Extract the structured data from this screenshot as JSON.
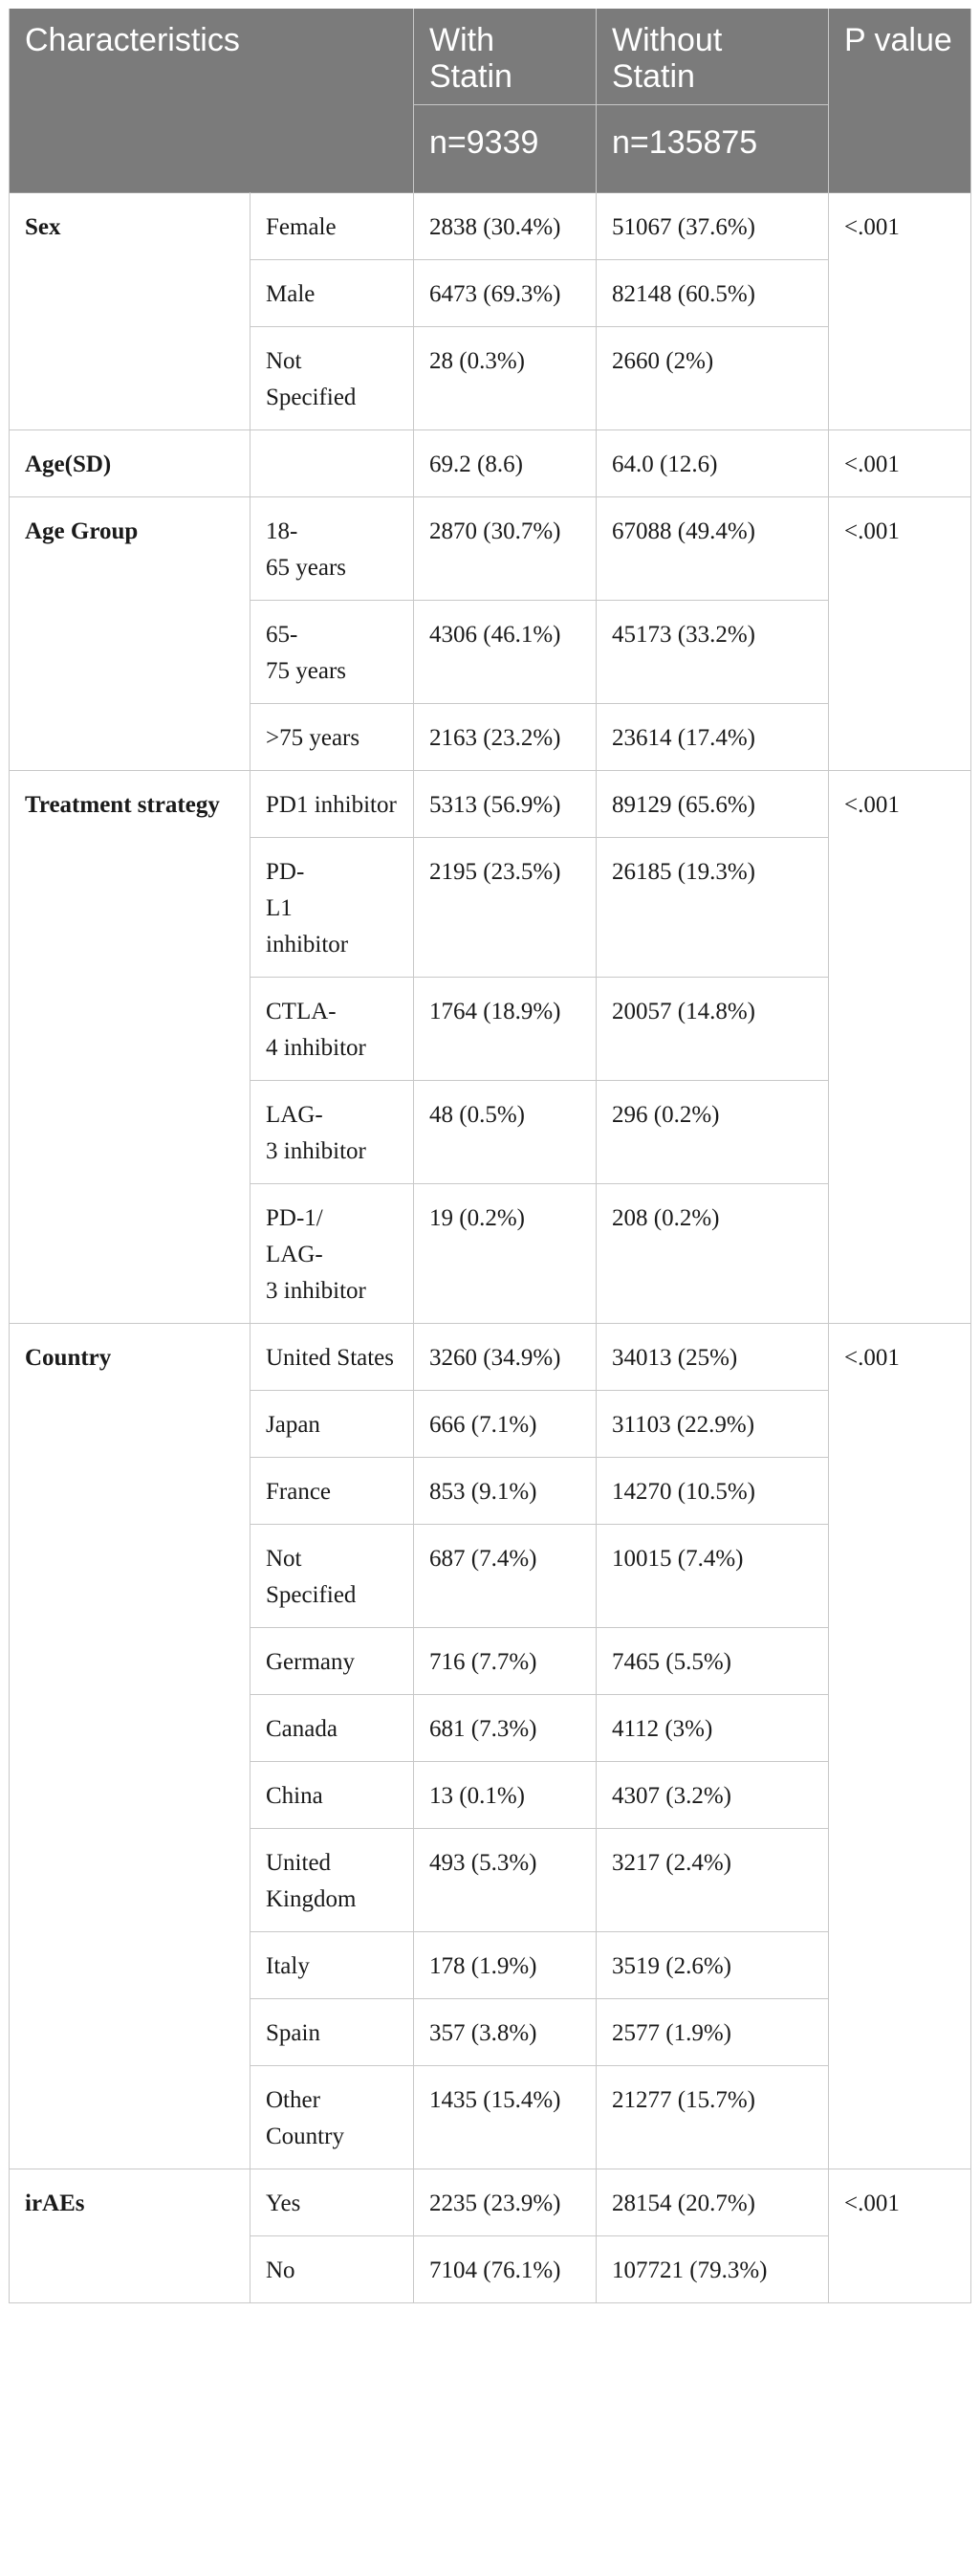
{
  "header": {
    "characteristics": "Characteristics",
    "with_statin": "With Statin",
    "without_statin": "Without Statin",
    "p_value": "P value",
    "n_with": "n=9339",
    "n_without": "n=135875"
  },
  "groups": [
    {
      "category": "Sex",
      "p": "<.001",
      "rows": [
        {
          "label": "Female",
          "with": "2838 (30.4%)",
          "without": "51067 (37.6%)"
        },
        {
          "label": "Male",
          "with": "6473 (69.3%)",
          "without": "82148 (60.5%)"
        },
        {
          "label": "Not Specified",
          "with": "28 (0.3%)",
          "without": "2660 (2%)"
        }
      ]
    },
    {
      "category": "Age(SD)",
      "p": "<.001",
      "rows": [
        {
          "label": "",
          "with": "69.2 (8.6)",
          "without": "64.0 (12.6)"
        }
      ]
    },
    {
      "category": "Age Group",
      "p": "<.001",
      "rows": [
        {
          "label": "18-\n65 years",
          "with": "2870 (30.7%)",
          "without": "67088 (49.4%)"
        },
        {
          "label": "65-\n75 years",
          "with": "4306 (46.1%)",
          "without": "45173 (33.2%)"
        },
        {
          "label": ">75 years",
          "with": "2163 (23.2%)",
          "without": "23614 (17.4%)"
        }
      ]
    },
    {
      "category": "Treatment strategy",
      "p": "<.001",
      "rows": [
        {
          "label": "PD1 inhibitor",
          "with": "5313 (56.9%)",
          "without": "89129 (65.6%)"
        },
        {
          "label": "PD-\nL1\ninhibitor",
          "with": "2195 (23.5%)",
          "without": "26185 (19.3%)"
        },
        {
          "label": "CTLA-\n4 inhibitor",
          "with": "1764 (18.9%)",
          "without": "20057 (14.8%)"
        },
        {
          "label": "LAG-\n3 inhibitor",
          "with": "48 (0.5%)",
          "without": "296 (0.2%)"
        },
        {
          "label": "PD-1/\nLAG-\n3 inhibitor",
          "with": "19 (0.2%)",
          "without": "208 (0.2%)"
        }
      ]
    },
    {
      "category": "Country",
      "p": "<.001",
      "rows": [
        {
          "label": "United States",
          "with": "3260 (34.9%)",
          "without": "34013 (25%)"
        },
        {
          "label": "Japan",
          "with": "666 (7.1%)",
          "without": "31103 (22.9%)"
        },
        {
          "label": "France",
          "with": "853 (9.1%)",
          "without": "14270 (10.5%)"
        },
        {
          "label": "Not Specified",
          "with": "687 (7.4%)",
          "without": "10015 (7.4%)"
        },
        {
          "label": "Germany",
          "with": "716 (7.7%)",
          "without": "7465 (5.5%)"
        },
        {
          "label": "Canada",
          "with": "681 (7.3%)",
          "without": "4112 (3%)"
        },
        {
          "label": "China",
          "with": "13 (0.1%)",
          "without": "4307 (3.2%)"
        },
        {
          "label": "United Kingdom",
          "with": "493 (5.3%)",
          "without": "3217 (2.4%)"
        },
        {
          "label": "Italy",
          "with": "178 (1.9%)",
          "without": "3519 (2.6%)"
        },
        {
          "label": "Spain",
          "with": "357 (3.8%)",
          "without": "2577 (1.9%)"
        },
        {
          "label": "Other Country",
          "with": "1435 (15.4%)",
          "without": "21277 (15.7%)"
        }
      ]
    },
    {
      "category": "irAEs",
      "p": "<.001",
      "rows": [
        {
          "label": "Yes",
          "with": "2235 (23.9%)",
          "without": "28154 (20.7%)"
        },
        {
          "label": "No",
          "with": "7104 (76.1%)",
          "without": "107721 (79.3%)"
        }
      ]
    }
  ]
}
